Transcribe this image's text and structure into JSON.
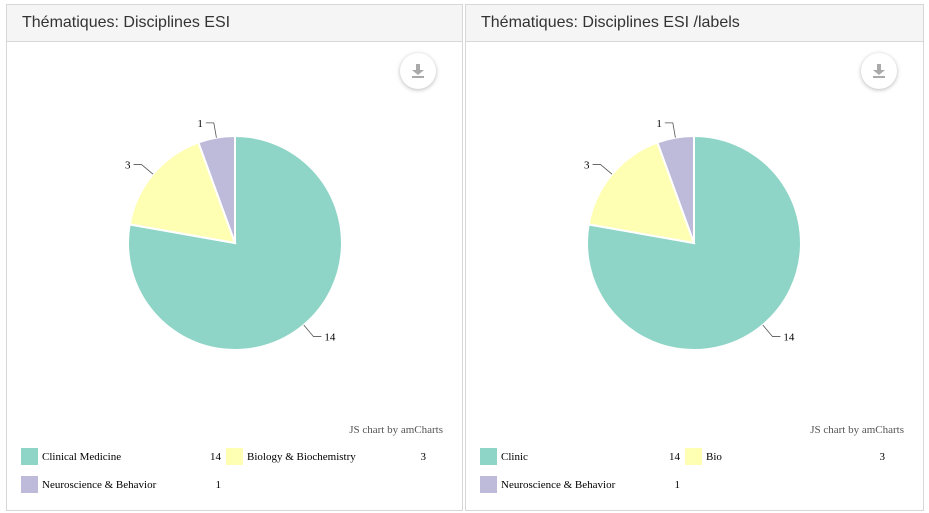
{
  "chart_data": [
    {
      "type": "pie",
      "title": "Thématiques: Disciplines ESI",
      "categories": [
        "Clinical Medicine",
        "Biology & Biochemistry",
        "Neuroscience & Behavior"
      ],
      "values": [
        14,
        3,
        1
      ],
      "colors": [
        "#8fd5c7",
        "#ffffb3",
        "#bebada"
      ],
      "legend": "bottom",
      "credit": "JS chart by amCharts",
      "export_icon": "download-icon"
    },
    {
      "type": "pie",
      "title": "Thématiques: Disciplines ESI /labels",
      "categories": [
        "Clinic",
        "Bio",
        "Neuroscience & Behavior"
      ],
      "values": [
        14,
        3,
        1
      ],
      "colors": [
        "#8fd5c7",
        "#ffffb3",
        "#bebada"
      ],
      "legend": "bottom",
      "credit": "JS chart by amCharts",
      "export_icon": "download-icon"
    }
  ]
}
